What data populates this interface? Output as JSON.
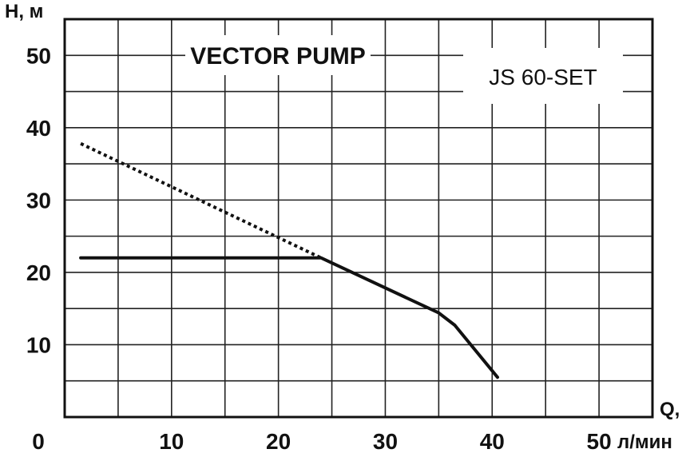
{
  "chart_data": {
    "type": "line",
    "title": "VECTOR PUMP",
    "model": "JS 60-SET",
    "ylabel": "H, м",
    "xlabel": "Q,",
    "xunit": "л/мин",
    "x_ticks": [
      "0",
      "10",
      "20",
      "30",
      "40",
      "50"
    ],
    "y_ticks": [
      "10",
      "20",
      "30",
      "40",
      "50"
    ],
    "xlim": [
      0,
      55
    ],
    "ylim": [
      0,
      55
    ],
    "grid": true,
    "series": [
      {
        "style": "dotted",
        "points": [
          [
            1.5,
            37.8
          ],
          [
            24,
            22
          ]
        ]
      },
      {
        "style": "solid",
        "points": [
          [
            1.5,
            22
          ],
          [
            24,
            22
          ],
          [
            35,
            14.4
          ],
          [
            36.5,
            12.7
          ],
          [
            40.5,
            5.5
          ]
        ]
      }
    ]
  }
}
